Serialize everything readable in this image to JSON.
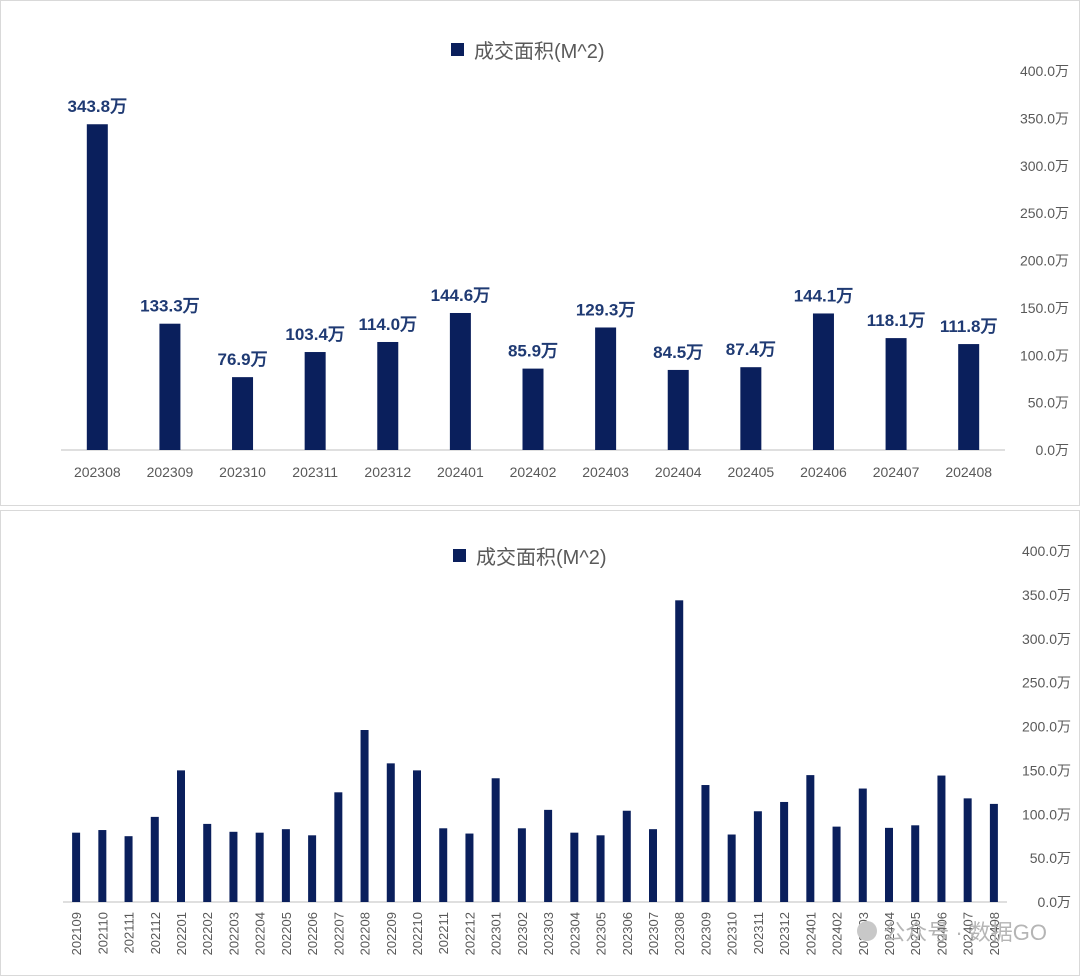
{
  "colors": {
    "bar": "#0a1f5c",
    "axis": "#bfbfbf",
    "tick_text": "#595959",
    "label_text": "#1f3a73"
  },
  "chart_data": [
    {
      "type": "bar",
      "legend": "成交面积(M^2)",
      "legend_position": "top",
      "categories": [
        "202308",
        "202309",
        "202310",
        "202311",
        "202312",
        "202401",
        "202402",
        "202403",
        "202404",
        "202405",
        "202406",
        "202407",
        "202408"
      ],
      "values": [
        343.8,
        133.3,
        76.9,
        103.4,
        114.0,
        144.6,
        85.9,
        129.3,
        84.5,
        87.4,
        144.1,
        118.1,
        111.8
      ],
      "data_labels": [
        "343.8万",
        "133.3万",
        "76.9万",
        "103.4万",
        "114.0万",
        "144.6万",
        "85.9万",
        "129.3万",
        "84.5万",
        "87.4万",
        "144.1万",
        "118.1万",
        "111.8万"
      ],
      "y_ticks": [
        "0.0万",
        "50.0万",
        "100.0万",
        "150.0万",
        "200.0万",
        "250.0万",
        "300.0万",
        "350.0万",
        "400.0万"
      ],
      "ylim": [
        0,
        400
      ],
      "y_axis_side": "right",
      "grid": false
    },
    {
      "type": "bar",
      "legend": "成交面积(M^2)",
      "legend_position": "top",
      "categories": [
        "202109",
        "202110",
        "202111",
        "202112",
        "202201",
        "202202",
        "202203",
        "202204",
        "202205",
        "202206",
        "202207",
        "202208",
        "202209",
        "202210",
        "202211",
        "202212",
        "202301",
        "202302",
        "202303",
        "202304",
        "202305",
        "202306",
        "202307",
        "202308",
        "202309",
        "202310",
        "202311",
        "202312",
        "202401",
        "202402",
        "202403",
        "202404",
        "202405",
        "202406",
        "202407",
        "202408"
      ],
      "values": [
        79,
        82,
        75,
        97,
        150,
        89,
        80,
        79,
        83,
        76,
        125,
        196,
        158,
        150,
        84,
        78,
        141,
        84,
        105,
        79,
        76,
        104,
        83,
        343.8,
        133.3,
        76.9,
        103.4,
        114.0,
        144.6,
        85.9,
        129.3,
        84.5,
        87.4,
        144.1,
        118.1,
        111.8
      ],
      "y_ticks": [
        "0.0万",
        "50.0万",
        "100.0万",
        "150.0万",
        "200.0万",
        "250.0万",
        "300.0万",
        "350.0万",
        "400.0万"
      ],
      "ylim": [
        0,
        400
      ],
      "y_axis_side": "right",
      "x_label_rotation": "vertical",
      "grid": false
    }
  ],
  "watermark": "公众号 · 数据GO"
}
